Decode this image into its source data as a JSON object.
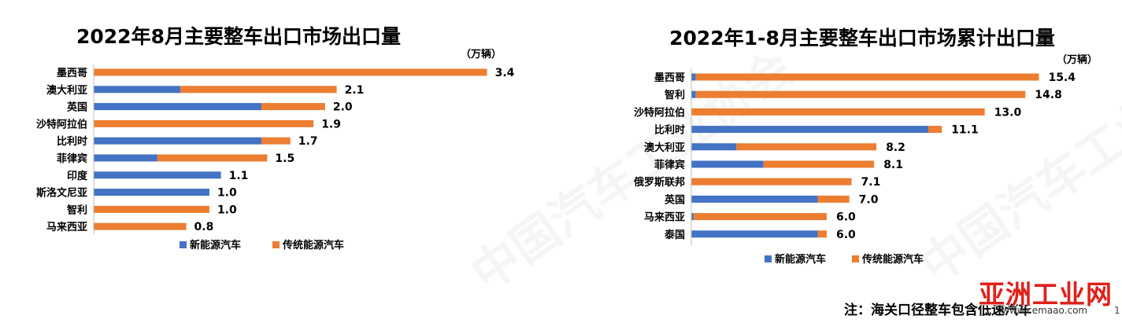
{
  "chart_data": [
    {
      "type": "bar",
      "orientation": "horizontal",
      "stacked": true,
      "title": "2022年8月主要整车出口市场出口量",
      "unit": "（万辆）",
      "categories": [
        "墨西哥",
        "澳大利亚",
        "英国",
        "沙特阿拉伯",
        "比利时",
        "菲律宾",
        "印度",
        "斯洛文尼亚",
        "智利",
        "马来西亚"
      ],
      "series": [
        {
          "name": "新能源汽车",
          "color": "#4472c4",
          "values": [
            0,
            0.75,
            1.45,
            0,
            1.45,
            0.55,
            1.1,
            1.0,
            0,
            0
          ]
        },
        {
          "name": "传统能源汽车",
          "color": "#ed7d31",
          "values": [
            3.4,
            1.35,
            0.55,
            1.9,
            0.25,
            0.95,
            0,
            0.0,
            1.0,
            0.8
          ]
        }
      ],
      "totals": [
        "3.4",
        "2.1",
        "2.0",
        "1.9",
        "1.7",
        "1.5",
        "1.1",
        "1.0",
        "1.0",
        "0.8"
      ],
      "xlim": [
        0,
        3.6
      ],
      "grid": false,
      "legend_position": "bottom"
    },
    {
      "type": "bar",
      "orientation": "horizontal",
      "stacked": true,
      "title": "2022年1-8月主要整车出口市场累计出口量",
      "unit": "（万辆）",
      "categories": [
        "墨西哥",
        "智利",
        "沙特阿拉伯",
        "比利时",
        "澳大利亚",
        "菲律宾",
        "俄罗斯联邦",
        "英国",
        "马来西亚",
        "泰国"
      ],
      "series": [
        {
          "name": "新能源汽车",
          "color": "#4472c4",
          "values": [
            0.2,
            0.2,
            0,
            10.5,
            2.0,
            3.2,
            0,
            5.6,
            0.1,
            5.6
          ]
        },
        {
          "name": "传统能源汽车",
          "color": "#ed7d31",
          "values": [
            15.2,
            14.6,
            13.0,
            0.6,
            6.2,
            4.9,
            7.1,
            1.4,
            5.9,
            0.4
          ]
        }
      ],
      "totals": [
        "15.4",
        "14.8",
        "13.0",
        "11.1",
        "8.2",
        "8.1",
        "7.1",
        "7.0",
        "6.0",
        "6.0"
      ],
      "xlim": [
        0,
        16.5
      ],
      "grid": false,
      "legend_position": "bottom"
    }
  ],
  "note": "注：海关口径整车包含低速汽车",
  "brand": {
    "name": "亚洲工业网",
    "url": "www.cemaao.com"
  },
  "page_number": "1"
}
